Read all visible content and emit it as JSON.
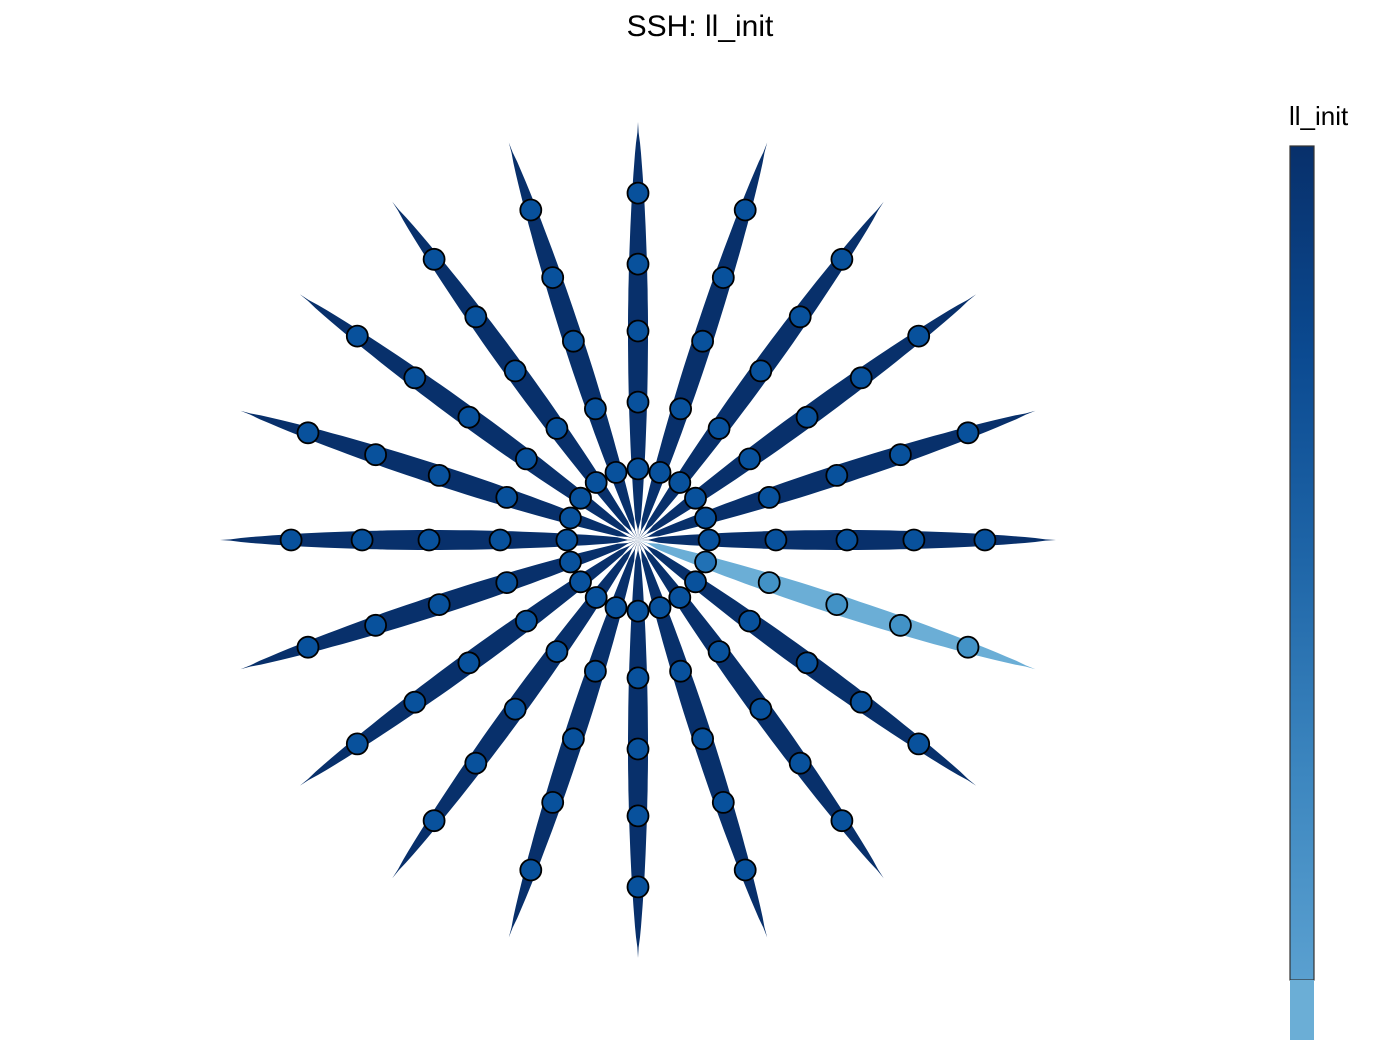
{
  "title": "SSH: ll_init",
  "colorbar": {
    "label": "ll_init",
    "colors": [
      "#08306b",
      "#0b4a91",
      "#1f66a8",
      "#3c86bf",
      "#5aa0d0"
    ],
    "highlight_color": "#6baed6"
  },
  "diagram": {
    "arms": 20,
    "points_per_arm": 5,
    "arm_color": "#08306b",
    "marker_color": "#08519c",
    "highlight": {
      "arm": 1,
      "arm_color": "#6baed6",
      "marker_colors": [
        "#2171b5",
        "#4292c6",
        "#4292c6",
        "#4292c6",
        "#4292c6"
      ]
    }
  }
}
